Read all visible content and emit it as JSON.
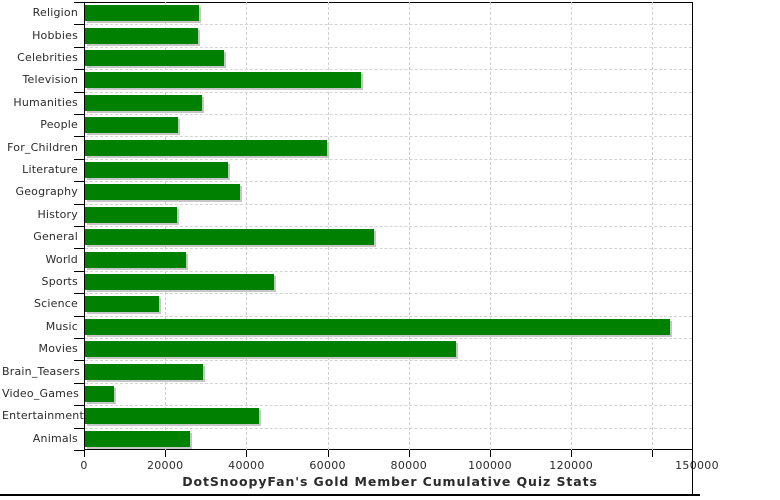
{
  "chart_data": {
    "type": "bar",
    "orientation": "horizontal",
    "title": "DotSnoopyFan's Gold Member Cumulative Quiz Stats",
    "categories": [
      "Religion",
      "Hobbies",
      "Celebrities",
      "Television",
      "Humanities",
      "People",
      "For_Children",
      "Literature",
      "Geography",
      "History",
      "General",
      "World",
      "Sports",
      "Science",
      "Music",
      "Movies",
      "Brain_Teasers",
      "Video_Games",
      "Entertainment",
      "Animals"
    ],
    "values": [
      28000,
      27800,
      34200,
      68000,
      28800,
      22900,
      59600,
      35200,
      38200,
      22700,
      71200,
      24900,
      46500,
      18200,
      144000,
      91400,
      29100,
      7100,
      42900,
      25900
    ],
    "xlim": [
      0,
      150000
    ],
    "x_tick_interval": 20000,
    "x_tick_labels": [
      "0",
      "20000",
      "40000",
      "60000",
      "80000",
      "100000",
      "120000"
    ],
    "x_end_label": "150000",
    "grid": true,
    "legend": false,
    "bar_color": "#008000",
    "bar_shadow_color": "#c6c6c6",
    "gridline_color": "#d4d4d4",
    "axis_color": "#000000",
    "label_color": "#2b2b2b"
  }
}
